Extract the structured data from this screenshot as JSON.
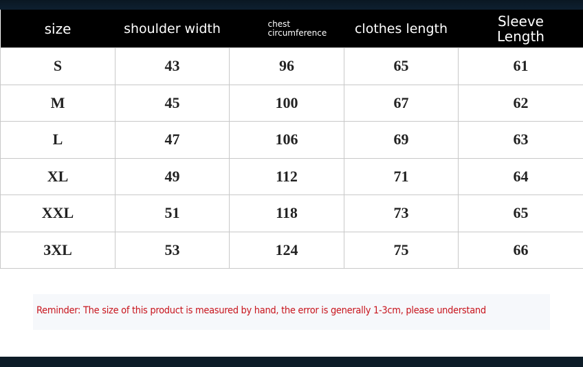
{
  "headers": [
    "size",
    "shoulder width",
    "chest circumference",
    "clothes length",
    "Sleeve Length"
  ],
  "rows": [
    [
      "S",
      "43",
      "96",
      "65",
      "61"
    ],
    [
      "M",
      "45",
      "100",
      "67",
      "62"
    ],
    [
      "L",
      "47",
      "106",
      "69",
      "63"
    ],
    [
      "XL",
      "49",
      "112",
      "71",
      "64"
    ],
    [
      "XXL",
      "51",
      "118",
      "73",
      "65"
    ],
    [
      "3XL",
      "53",
      "124",
      "75",
      "66"
    ]
  ],
  "reminder": "Reminder: The size of this product is measured by hand, the error is generally 1-3cm, please understand",
  "colors": {
    "header_bg": "#000000",
    "reminder_text": "#c8141c"
  }
}
